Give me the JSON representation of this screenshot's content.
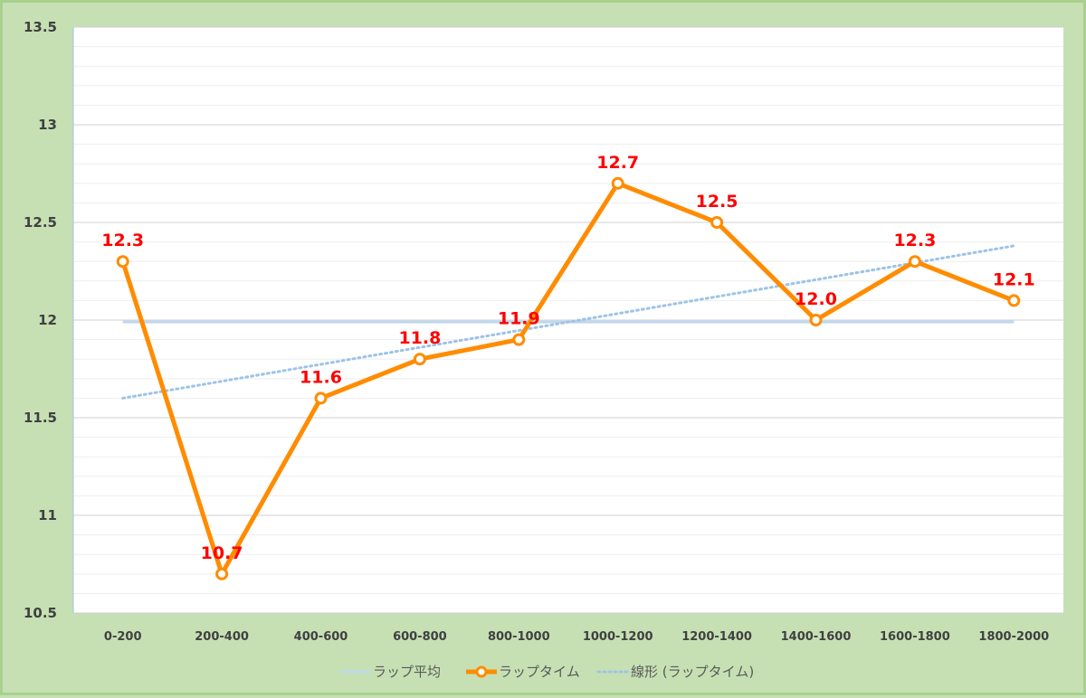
{
  "chart_data": {
    "type": "line",
    "categories": [
      "0-200",
      "200-400",
      "400-600",
      "600-800",
      "800-1000",
      "1000-1200",
      "1200-1400",
      "1400-1600",
      "1600-1800",
      "1800-2000"
    ],
    "ylim": [
      10.5,
      13.5
    ],
    "yticks": [
      "10.5",
      "11",
      "11.5",
      "12",
      "12.5",
      "13",
      "13.5"
    ],
    "series": [
      {
        "name": "ラップ平均",
        "kind": "average",
        "color": "#bdd7ee",
        "values": [
          11.99,
          11.99,
          11.99,
          11.99,
          11.99,
          11.99,
          11.99,
          11.99,
          11.99,
          11.99
        ]
      },
      {
        "name": "ラップタイム",
        "kind": "main",
        "color": "#ff8c00",
        "values": [
          12.3,
          10.7,
          11.6,
          11.8,
          11.9,
          12.7,
          12.5,
          12.0,
          12.3,
          12.1
        ],
        "data_labels": [
          "12.3",
          "10.7",
          "11.6",
          "11.8",
          "11.9",
          "12.7",
          "12.5",
          "12.0",
          "12.3",
          "12.1"
        ]
      },
      {
        "name": "線形 (ラップタイム)",
        "kind": "trend",
        "color": "#9dc3e6",
        "values": [
          11.6,
          11.69,
          11.77,
          11.86,
          11.94,
          12.03,
          12.12,
          12.2,
          12.29,
          12.38
        ]
      }
    ],
    "title": "",
    "xlabel": "",
    "ylabel": "",
    "grid": true,
    "legend_position": "bottom",
    "background_color": "#c6e0b4",
    "plot_background": "#ffffff",
    "gridline_color": "#d9d9d9",
    "label_color": "#ff0000"
  }
}
